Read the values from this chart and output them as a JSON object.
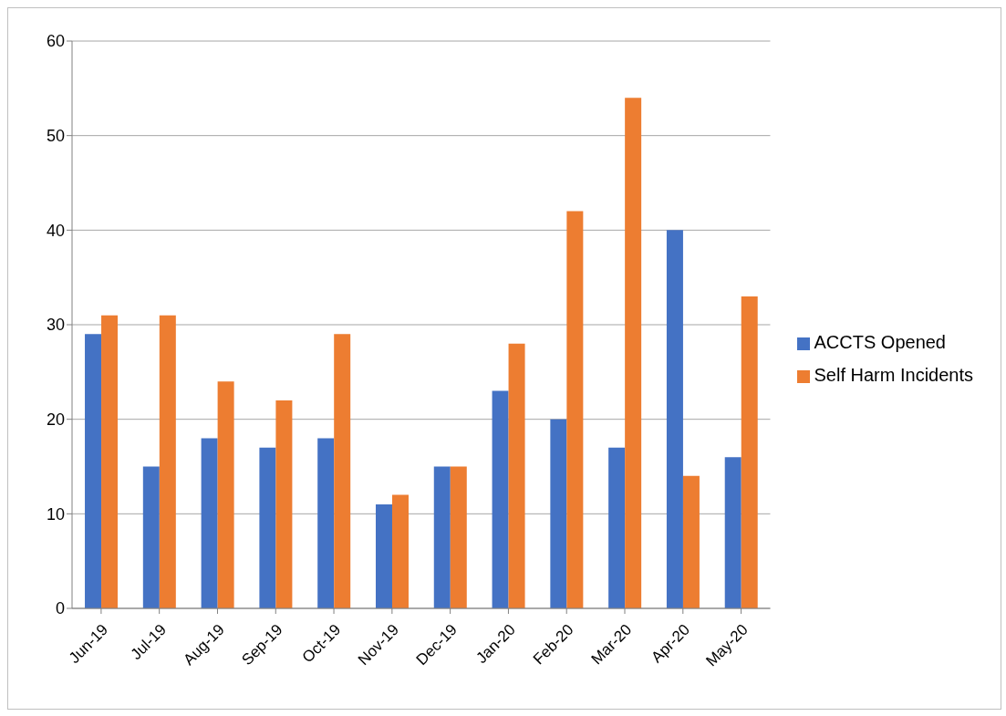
{
  "chart_data": {
    "type": "bar",
    "categories": [
      "Jun-19",
      "Jul-19",
      "Aug-19",
      "Sep-19",
      "Oct-19",
      "Nov-19",
      "Dec-19",
      "Jan-20",
      "Feb-20",
      "Mar-20",
      "Apr-20",
      "May-20"
    ],
    "series": [
      {
        "name": "ACCTS Opened",
        "color": "#4472c4",
        "values": [
          29,
          15,
          18,
          17,
          18,
          11,
          15,
          23,
          20,
          17,
          40,
          16
        ]
      },
      {
        "name": "Self Harm Incidents",
        "color": "#ed7d31",
        "values": [
          31,
          31,
          24,
          22,
          29,
          12,
          15,
          28,
          42,
          54,
          14,
          33
        ]
      }
    ],
    "ylim": [
      0,
      60
    ],
    "yticks": [
      0,
      10,
      20,
      30,
      40,
      50,
      60
    ],
    "grid": "y",
    "legend": "right"
  }
}
